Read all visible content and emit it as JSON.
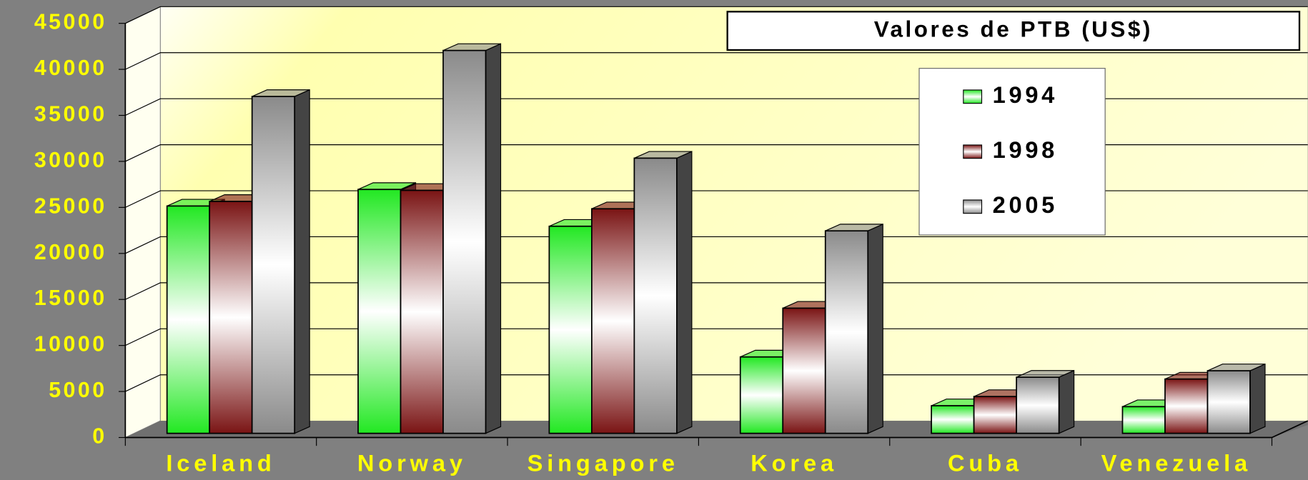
{
  "chart_data": {
    "type": "bar",
    "title": "Valores de PTB (US$)",
    "categories": [
      "Iceland",
      "Norway",
      "Singapore",
      "Korea",
      "Cuba",
      "Venezuela"
    ],
    "series": [
      {
        "name": "1994",
        "color": "#22e822",
        "values": [
          24700,
          26500,
          22500,
          8300,
          3000,
          2900
        ]
      },
      {
        "name": "1998",
        "color": "#7a1414",
        "values": [
          25200,
          26400,
          24400,
          13600,
          4000,
          5900
        ]
      },
      {
        "name": "2005",
        "color": "#8a8a8a",
        "values": [
          36600,
          41600,
          29900,
          22000,
          6100,
          6800
        ]
      }
    ],
    "ylim": [
      0,
      45000
    ],
    "yticks": [
      0,
      5000,
      10000,
      15000,
      20000,
      25000,
      30000,
      35000,
      40000,
      45000
    ],
    "grid": true,
    "legend": "upper right"
  }
}
